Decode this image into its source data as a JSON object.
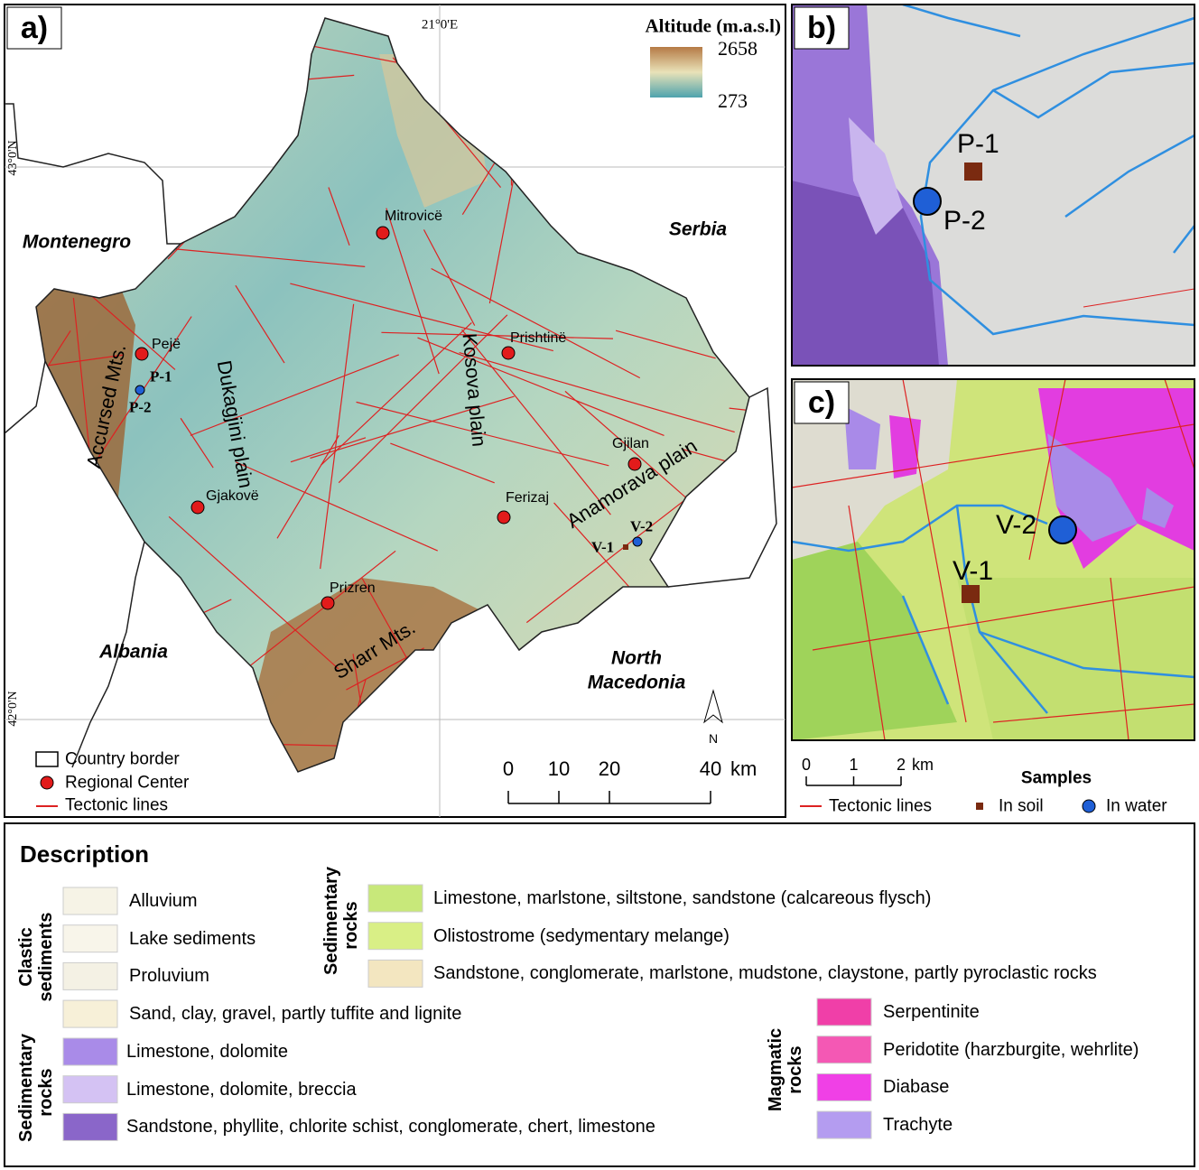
{
  "panel_a": {
    "label": "a)",
    "legend_title": "Altitude (m.a.s.l)",
    "alt_max": "2658",
    "alt_min": "273",
    "lon_label": "21°0'E",
    "lat_labels": [
      "43°0'N",
      "42°0'N"
    ],
    "countries": [
      "Montenegro",
      "Serbia",
      "Albania",
      "North Macedonia"
    ],
    "cities": [
      "Mitrovicë",
      "Prishtinë",
      "Pejë",
      "Gjakovë",
      "Gjilan",
      "Ferizaj",
      "Prizren"
    ],
    "samples": [
      "P-1",
      "P-2",
      "V-2",
      "V-1"
    ],
    "regions": [
      "Accursed Mts.",
      "Dukagjini plain",
      "Kosova plain",
      "Anamorava plain",
      "Sharr Mts."
    ],
    "north": "N",
    "legend": [
      "Country border",
      "Regional Center",
      "Tectonic lines"
    ],
    "scale_ticks": [
      0,
      10,
      20,
      40
    ],
    "scale_unit": "km"
  },
  "panel_b": {
    "label": "b)",
    "samples": [
      "P-1",
      "P-2"
    ]
  },
  "panel_c": {
    "label": "c)",
    "samples": [
      "V-1",
      "V-2"
    ],
    "scale_ticks": [
      0,
      1,
      2
    ],
    "scale_unit": "km",
    "legend": [
      "Tectonic lines"
    ],
    "samples_title": "Samples",
    "sample_types": [
      "In soil",
      "In water"
    ]
  },
  "description": {
    "title": "Description",
    "groups": [
      {
        "name": "Clastic sediments",
        "items": [
          {
            "label": "Alluvium",
            "color": "#f6f3e6"
          },
          {
            "label": "Lake sediments",
            "color": "#f8f5ea"
          },
          {
            "label": "Proluvium",
            "color": "#f4f1e4"
          },
          {
            "label": "Sand, clay, gravel, partly tuffite and lignite",
            "color": "#f7f0d8"
          }
        ]
      },
      {
        "name": "Sedimentary rocks",
        "items": [
          {
            "label": "Limestone, dolomite",
            "color": "#a98be8"
          },
          {
            "label": "Limestone, dolomite, breccia",
            "color": "#d4c2f3"
          },
          {
            "label": "Sandstone, phyllite, chlorite schist, conglomerate, chert, limestone",
            "color": "#8a66c9"
          }
        ]
      },
      {
        "name": "Sedimentary rocks",
        "items": [
          {
            "label": "Limestone, marlstone, siltstone, sandstone (calcareous flysch)",
            "color": "#c8e87a"
          },
          {
            "label": "Olistostrome (sedymentary melange)",
            "color": "#d9ef86"
          },
          {
            "label": "Sandstone, conglomerate, marlstone, mudstone, claystone, partly pyroclastic rocks",
            "color": "#f3e6c0"
          }
        ]
      },
      {
        "name": "Magmatic rocks",
        "items": [
          {
            "label": "Serpentinite",
            "color": "#f03fa8"
          },
          {
            "label": "Peridotite (harzburgite, wehrlite)",
            "color": "#f458b4"
          },
          {
            "label": "Diabase",
            "color": "#f040e6"
          },
          {
            "label": "Trachyte",
            "color": "#b49cf0"
          }
        ]
      }
    ]
  }
}
